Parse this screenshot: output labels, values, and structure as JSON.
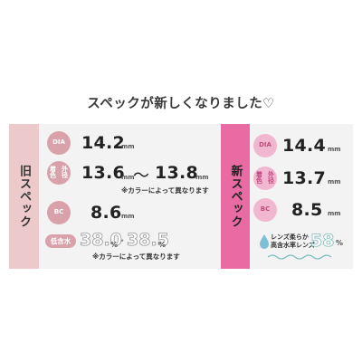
{
  "title": "スペックが新しくなりました♡",
  "old": {
    "label": "旧スペック",
    "dia": {
      "badge": "DIA",
      "value": "14.2",
      "unit": "mm"
    },
    "coloring": {
      "badge_line1": "着色",
      "badge_line2": "外径",
      "value_min": "13.6",
      "tilde": "〜",
      "value_max": "13.8",
      "unit": "mm",
      "note": "※カラーによって異なります"
    },
    "bc": {
      "badge": "BC",
      "value": "8.6",
      "unit": "mm"
    },
    "water": {
      "badge": "低含水",
      "value_min": "38.0",
      "sep": "・",
      "value_max": "38.5",
      "unit": "%",
      "note": "※カラーによって異なります"
    }
  },
  "new": {
    "label": "新スペック",
    "dia": {
      "badge": "DIA",
      "value": "14.4",
      "unit": "mm"
    },
    "coloring": {
      "badge_line1": "着色",
      "badge_line2": "外径",
      "value": "13.7",
      "unit": "mm"
    },
    "bc": {
      "badge": "BC",
      "value": "8.5",
      "unit": "mm"
    },
    "water": {
      "line1": "レンズ柔らか",
      "line2": "高含水率レンズ",
      "value": "58",
      "unit": "%"
    }
  },
  "colors": {
    "old_accent": "#d9a2aa",
    "old_side": "#ecc9cb",
    "new_accent": "#e86ba4",
    "panel_bg": "#f3f3f3"
  }
}
